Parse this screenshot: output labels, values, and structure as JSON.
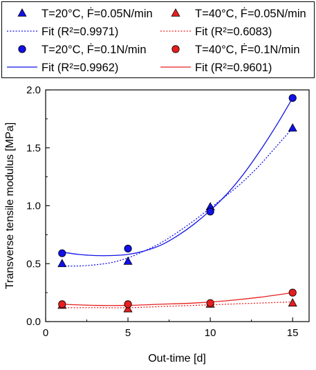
{
  "colors": {
    "blue": "#1010e8",
    "red": "#e81e1e",
    "axis": "#000000"
  },
  "legend": {
    "placement": "top",
    "columns": 2,
    "entries": [
      {
        "label": "T=20°C, Ḟ=0.05N/min",
        "series": 0,
        "kind": "marker",
        "marker": "triangle",
        "color": "blue"
      },
      {
        "label": "T=40°C, Ḟ=0.05N/min",
        "series": 2,
        "kind": "marker",
        "marker": "triangle",
        "color": "red"
      },
      {
        "label": "Fit (R²=0.9971)",
        "fit": 0,
        "kind": "line",
        "dash": "dotted",
        "color": "blue"
      },
      {
        "label": "Fit (R²=0.6083)",
        "fit": 2,
        "kind": "line",
        "dash": "dotted",
        "color": "red"
      },
      {
        "label": "T=20°C, Ḟ=0.1N/min",
        "series": 1,
        "kind": "marker",
        "marker": "circle",
        "color": "blue"
      },
      {
        "label": "T=40°C, Ḟ=0.1N/min",
        "series": 3,
        "kind": "marker",
        "marker": "circle",
        "color": "red"
      },
      {
        "label": "Fit (R²=0.9962)",
        "fit": 1,
        "kind": "line",
        "dash": "solid",
        "color": "blue"
      },
      {
        "label": "Fit (R²=0.9601)",
        "fit": 3,
        "kind": "line",
        "dash": "solid",
        "color": "red"
      }
    ]
  },
  "chart_data": {
    "type": "scatter",
    "xlabel": "Out-time [d]",
    "ylabel": "Transverse tensile modulus [MPa]",
    "xlim": [
      0,
      16
    ],
    "ylim": [
      0,
      2.0
    ],
    "xticks": [
      0,
      5,
      10,
      15
    ],
    "yticks": [
      0.0,
      0.5,
      1.0,
      1.5,
      2.0
    ],
    "ytick_labels": [
      "0.0",
      "0.5",
      "1.0",
      "1.5",
      "2.0"
    ],
    "grid": false,
    "series": [
      {
        "name": "T=20°C, Ḟ=0.05N/min",
        "marker": "triangle",
        "color": "blue",
        "x": [
          1,
          5,
          10,
          15
        ],
        "y": [
          0.5,
          0.52,
          0.99,
          1.67
        ]
      },
      {
        "name": "T=20°C, Ḟ=0.1N/min",
        "marker": "circle",
        "color": "blue",
        "x": [
          1,
          5,
          10,
          15
        ],
        "y": [
          0.59,
          0.63,
          0.95,
          1.93
        ]
      },
      {
        "name": "T=40°C, Ḟ=0.05N/min",
        "marker": "triangle",
        "color": "red",
        "x": [
          1,
          5,
          10,
          15
        ],
        "y": [
          0.14,
          0.11,
          0.15,
          0.16
        ]
      },
      {
        "name": "T=40°C, Ḟ=0.1N/min",
        "marker": "circle",
        "color": "red",
        "x": [
          1,
          5,
          10,
          15
        ],
        "y": [
          0.15,
          0.15,
          0.16,
          0.25
        ]
      }
    ],
    "fits": [
      {
        "name": "Fit (R²=0.9971)",
        "color": "blue",
        "dash": "dotted",
        "x": [
          1,
          2,
          3,
          4,
          5,
          6,
          7,
          8,
          9,
          10,
          11,
          12,
          13,
          14,
          15
        ],
        "y": [
          0.48,
          0.48,
          0.49,
          0.51,
          0.55,
          0.61,
          0.68,
          0.77,
          0.87,
          0.98,
          1.09,
          1.21,
          1.35,
          1.51,
          1.67
        ]
      },
      {
        "name": "Fit (R²=0.9962)",
        "color": "blue",
        "dash": "solid",
        "x": [
          1,
          2,
          3,
          4,
          5,
          6,
          7,
          8,
          9,
          10,
          11,
          12,
          13,
          14,
          15
        ],
        "y": [
          0.6,
          0.58,
          0.57,
          0.57,
          0.58,
          0.61,
          0.66,
          0.74,
          0.84,
          0.96,
          1.1,
          1.27,
          1.47,
          1.69,
          1.93
        ]
      },
      {
        "name": "Fit (R²=0.6083)",
        "color": "red",
        "dash": "dotted",
        "x": [
          1,
          3,
          5,
          7,
          9,
          11,
          13,
          15
        ],
        "y": [
          0.12,
          0.12,
          0.12,
          0.13,
          0.14,
          0.15,
          0.16,
          0.17
        ]
      },
      {
        "name": "Fit (R²=0.9601)",
        "color": "red",
        "dash": "solid",
        "x": [
          1,
          3,
          5,
          7,
          9,
          11,
          13,
          15
        ],
        "y": [
          0.15,
          0.14,
          0.14,
          0.15,
          0.16,
          0.18,
          0.21,
          0.25
        ]
      }
    ]
  }
}
